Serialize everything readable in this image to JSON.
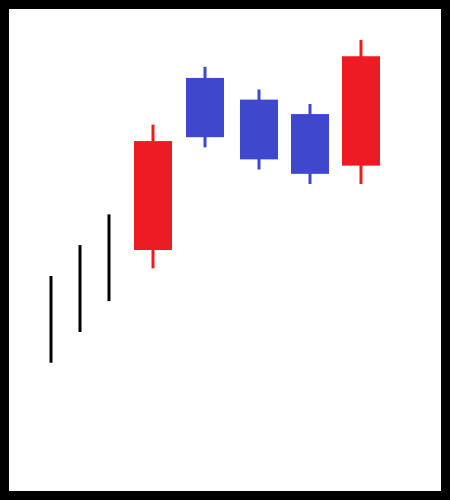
{
  "colors": {
    "background": "#ffffff",
    "frame": "#000000",
    "bullish": "#ed1c24",
    "bearish": "#3f48cc",
    "wick_only": "#000000"
  },
  "chart_data": {
    "type": "candlestick",
    "title": "",
    "xlabel": "",
    "ylabel": "",
    "grid": false,
    "legend": "none",
    "ylim": [
      0,
      100
    ],
    "candles": [
      {
        "index": 1,
        "style": "wick",
        "high": 44.6,
        "low": 26.6
      },
      {
        "index": 2,
        "style": "wick",
        "high": 51.0,
        "low": 33.0
      },
      {
        "index": 3,
        "style": "wick",
        "high": 57.4,
        "low": 39.4
      },
      {
        "index": 4,
        "style": "body",
        "direction": "up",
        "open": 50.0,
        "close": 72.6,
        "high": 76.0,
        "low": 46.2
      },
      {
        "index": 5,
        "style": "body",
        "direction": "down",
        "open": 85.7,
        "close": 73.4,
        "high": 88.0,
        "low": 71.3
      },
      {
        "index": 6,
        "style": "body",
        "direction": "down",
        "open": 81.2,
        "close": 68.8,
        "high": 83.3,
        "low": 66.7
      },
      {
        "index": 7,
        "style": "body",
        "direction": "down",
        "open": 78.2,
        "close": 65.8,
        "high": 80.3,
        "low": 63.7
      },
      {
        "index": 8,
        "style": "body",
        "direction": "up",
        "open": 67.5,
        "close": 90.2,
        "high": 93.6,
        "low": 63.7
      }
    ]
  }
}
